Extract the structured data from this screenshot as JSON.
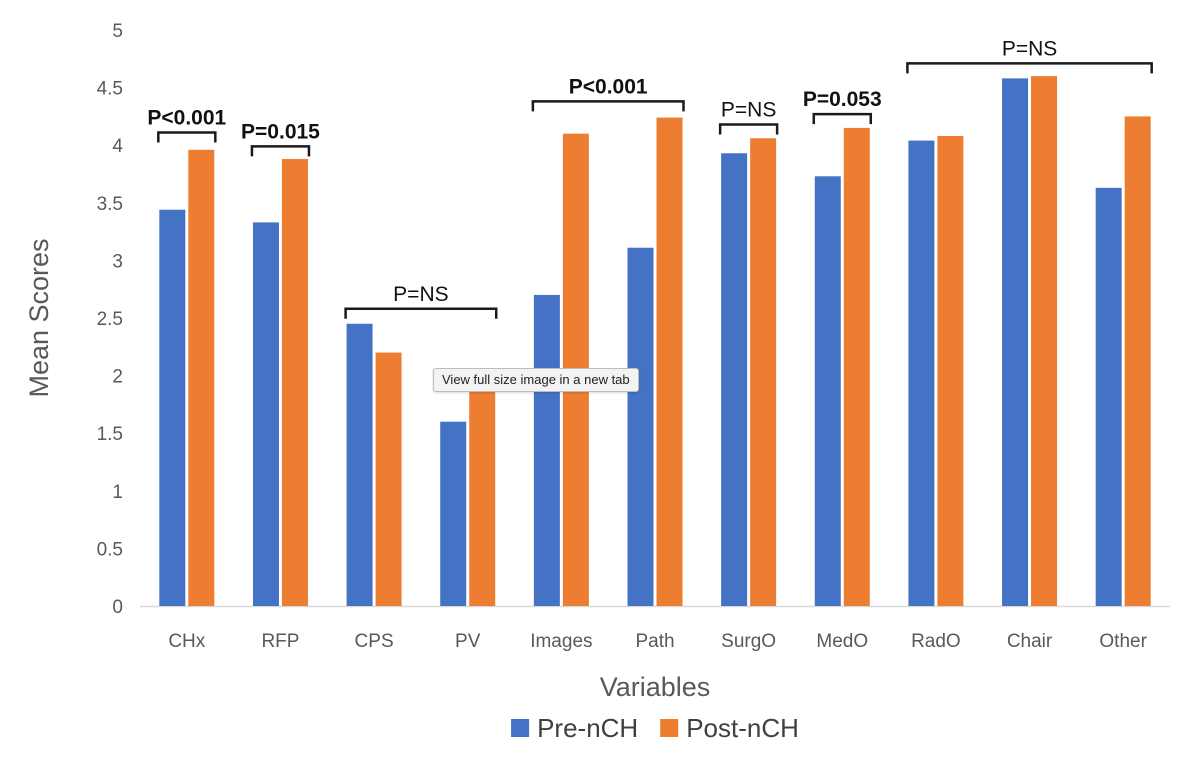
{
  "chart_data": {
    "type": "bar",
    "categories": [
      "CHx",
      "RFP",
      "CPS",
      "PV",
      "Images",
      "Path",
      "SurgO",
      "MedO",
      "RadO",
      "Chair",
      "Other"
    ],
    "series": [
      {
        "name": "Pre-nCH",
        "color": "#4472c4",
        "values": [
          3.44,
          3.33,
          2.45,
          1.6,
          2.7,
          3.11,
          3.93,
          3.73,
          4.04,
          4.58,
          3.63
        ]
      },
      {
        "name": "Post-nCH",
        "color": "#ed7d31",
        "values": [
          3.96,
          3.88,
          2.2,
          1.92,
          4.1,
          4.24,
          4.06,
          4.15,
          4.08,
          4.6,
          4.25
        ]
      }
    ],
    "xlabel": "Variables",
    "ylabel": "Mean Scores",
    "ylim": [
      0,
      5
    ],
    "yticks": [
      "0",
      "0.5",
      "1",
      "1.5",
      "2",
      "2.5",
      "3",
      "3.5",
      "4",
      "4.5",
      "5"
    ],
    "grid": false,
    "legend": "bottom",
    "annotations": [
      {
        "text": "P<0.001",
        "bold": true,
        "from": "CHx",
        "to": "CHx",
        "level": 4.11
      },
      {
        "text": "P=0.015",
        "bold": true,
        "from": "RFP",
        "to": "RFP",
        "level": 3.99
      },
      {
        "text": "P=NS",
        "bold": false,
        "from": "CPS",
        "to": "PV",
        "level": 2.58
      },
      {
        "text": "P<0.001",
        "bold": true,
        "from": "Images",
        "to": "Path",
        "level": 4.38
      },
      {
        "text": "P=NS",
        "bold": false,
        "from": "SurgO",
        "to": "SurgO",
        "level": 4.18
      },
      {
        "text": "P=0.053",
        "bold": true,
        "from": "MedO",
        "to": "MedO",
        "level": 4.27
      },
      {
        "text": "P=NS",
        "bold": false,
        "from": "RadO",
        "to": "Other",
        "level": 4.71
      }
    ]
  },
  "tooltip": {
    "label": "View full size image in a new tab"
  }
}
